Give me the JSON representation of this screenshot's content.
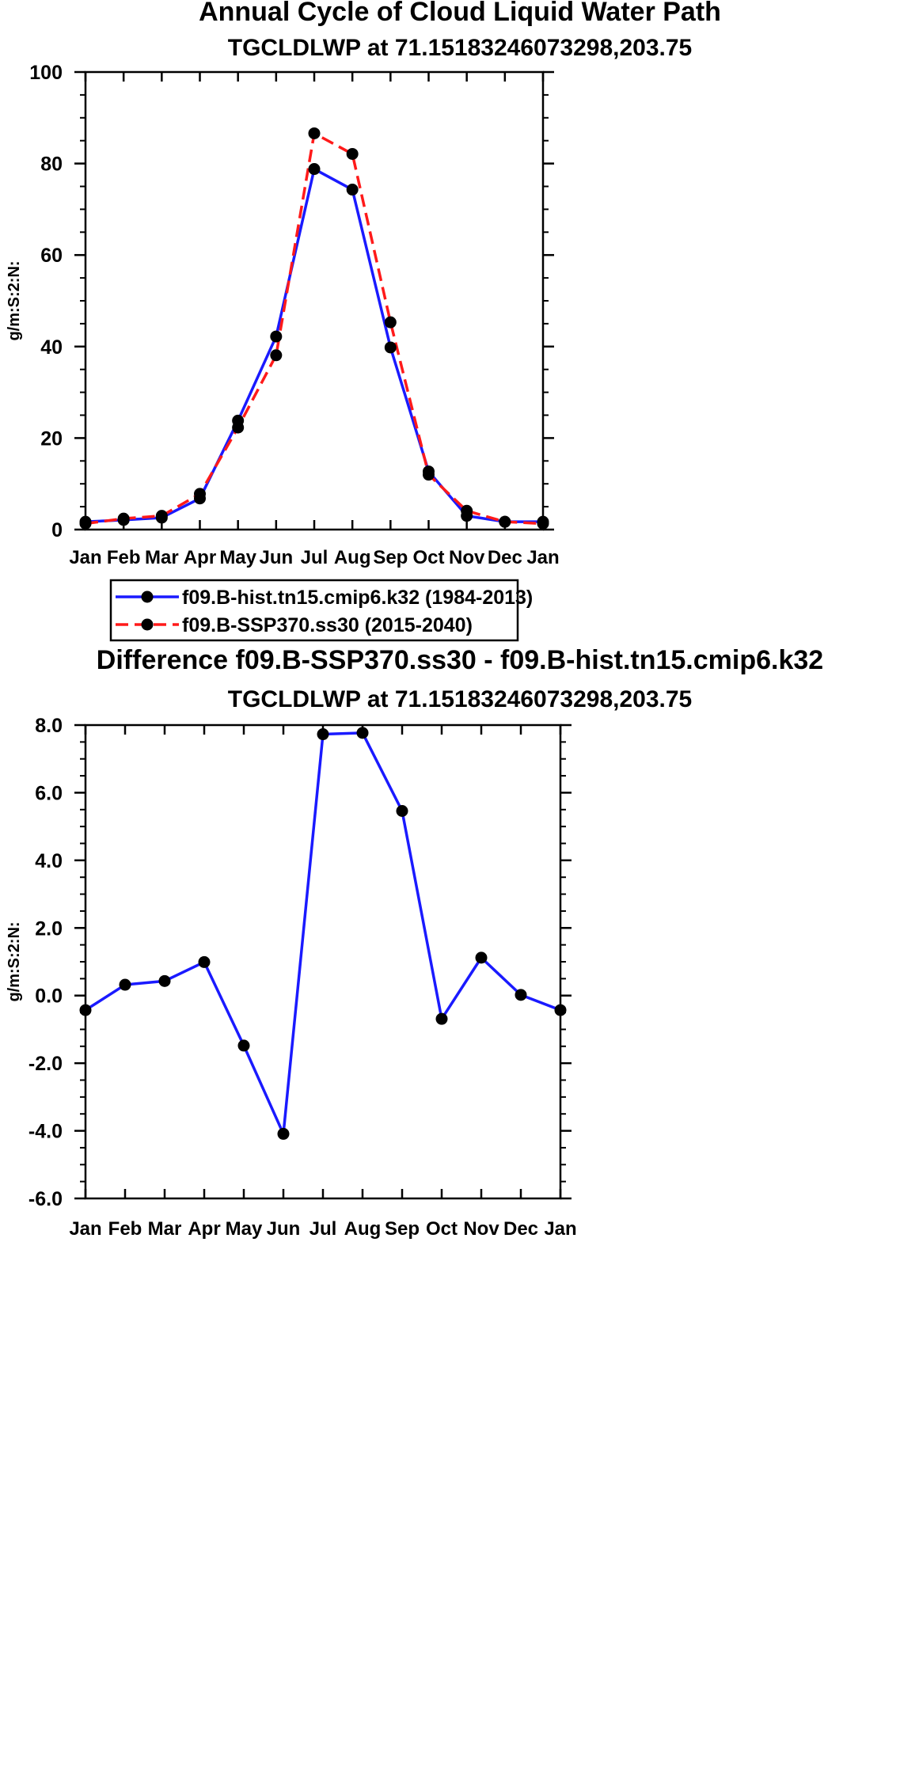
{
  "chart_data": [
    {
      "type": "line",
      "title": "Annual Cycle of Cloud Liquid Water Path",
      "subtitle": "TGCLDLWP at 71.15183246073298,203.75",
      "ylabel": "g/m:S:2:N:",
      "xlabel": "",
      "categories": [
        "Jan",
        "Feb",
        "Mar",
        "Apr",
        "May",
        "Jun",
        "Jul",
        "Aug",
        "Sep",
        "Oct",
        "Nov",
        "Dec",
        "Jan"
      ],
      "ylim": [
        0,
        100
      ],
      "yticks": [
        0,
        20,
        40,
        60,
        80,
        100
      ],
      "ytick_labels": [
        "0",
        "20",
        "40",
        "60",
        "80",
        "100"
      ],
      "series": [
        {
          "name": "f09.B-hist.tn15.cmip6.k32 (1984-2013)",
          "color": "#1a1aff",
          "dash": "solid",
          "values": [
            1.7,
            2.1,
            2.6,
            6.8,
            23.8,
            42.2,
            78.8,
            74.3,
            39.8,
            12.7,
            3.0,
            1.7,
            1.7
          ]
        },
        {
          "name": "f09.B-SSP370.ss30 (2015-2040)",
          "color": "#ff1a1a",
          "dash": "dashed",
          "values": [
            1.3,
            2.4,
            3.0,
            7.8,
            22.3,
            38.1,
            86.6,
            82.1,
            45.3,
            12.0,
            4.1,
            1.7,
            1.3
          ]
        }
      ],
      "legend": "bottom"
    },
    {
      "type": "line",
      "title": "Difference f09.B-SSP370.ss30 - f09.B-hist.tn15.cmip6.k32",
      "subtitle": "TGCLDLWP at 71.15183246073298,203.75",
      "ylabel": "g/m:S:2:N:",
      "xlabel": "",
      "categories": [
        "Jan",
        "Feb",
        "Mar",
        "Apr",
        "May",
        "Jun",
        "Jul",
        "Aug",
        "Sep",
        "Oct",
        "Nov",
        "Dec",
        "Jan"
      ],
      "ylim": [
        -6,
        8
      ],
      "yticks": [
        -6,
        -4,
        -2,
        0,
        2,
        4,
        6,
        8
      ],
      "ytick_labels": [
        "-6.0",
        "-4.0",
        "-2.0",
        "0.0",
        "2.0",
        "4.0",
        "6.0",
        "8.0"
      ],
      "series": [
        {
          "name": "Difference",
          "color": "#1a1aff",
          "dash": "solid",
          "values": [
            -0.43,
            0.32,
            0.43,
            0.99,
            -1.48,
            -4.09,
            7.73,
            7.77,
            5.46,
            -0.69,
            1.12,
            0.02,
            -0.43
          ]
        }
      ]
    }
  ]
}
